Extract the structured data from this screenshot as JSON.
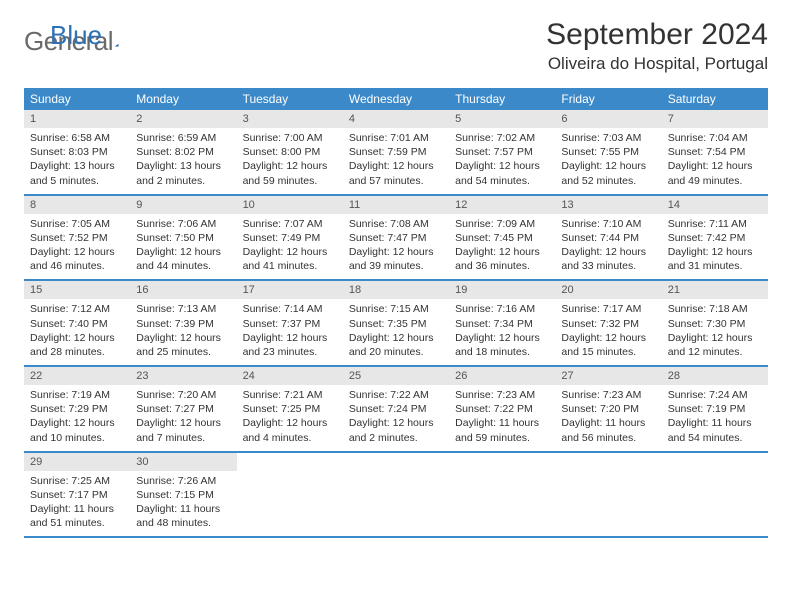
{
  "logo": {
    "text1": "General",
    "text2": "Blue"
  },
  "title": "September 2024",
  "location": "Oliveira do Hospital, Portugal",
  "weekdays": [
    "Sunday",
    "Monday",
    "Tuesday",
    "Wednesday",
    "Thursday",
    "Friday",
    "Saturday"
  ],
  "colors": {
    "header_bg": "#3b89c9",
    "header_text": "#ffffff",
    "daynum_bg": "#e7e7e7",
    "border": "#3b89c9",
    "logo_gray": "#6a6a6a",
    "logo_blue": "#2d72b5"
  },
  "days": [
    {
      "n": "1",
      "sr": "6:58 AM",
      "ss": "8:03 PM",
      "dl": "13 hours and 5 minutes."
    },
    {
      "n": "2",
      "sr": "6:59 AM",
      "ss": "8:02 PM",
      "dl": "13 hours and 2 minutes."
    },
    {
      "n": "3",
      "sr": "7:00 AM",
      "ss": "8:00 PM",
      "dl": "12 hours and 59 minutes."
    },
    {
      "n": "4",
      "sr": "7:01 AM",
      "ss": "7:59 PM",
      "dl": "12 hours and 57 minutes."
    },
    {
      "n": "5",
      "sr": "7:02 AM",
      "ss": "7:57 PM",
      "dl": "12 hours and 54 minutes."
    },
    {
      "n": "6",
      "sr": "7:03 AM",
      "ss": "7:55 PM",
      "dl": "12 hours and 52 minutes."
    },
    {
      "n": "7",
      "sr": "7:04 AM",
      "ss": "7:54 PM",
      "dl": "12 hours and 49 minutes."
    },
    {
      "n": "8",
      "sr": "7:05 AM",
      "ss": "7:52 PM",
      "dl": "12 hours and 46 minutes."
    },
    {
      "n": "9",
      "sr": "7:06 AM",
      "ss": "7:50 PM",
      "dl": "12 hours and 44 minutes."
    },
    {
      "n": "10",
      "sr": "7:07 AM",
      "ss": "7:49 PM",
      "dl": "12 hours and 41 minutes."
    },
    {
      "n": "11",
      "sr": "7:08 AM",
      "ss": "7:47 PM",
      "dl": "12 hours and 39 minutes."
    },
    {
      "n": "12",
      "sr": "7:09 AM",
      "ss": "7:45 PM",
      "dl": "12 hours and 36 minutes."
    },
    {
      "n": "13",
      "sr": "7:10 AM",
      "ss": "7:44 PM",
      "dl": "12 hours and 33 minutes."
    },
    {
      "n": "14",
      "sr": "7:11 AM",
      "ss": "7:42 PM",
      "dl": "12 hours and 31 minutes."
    },
    {
      "n": "15",
      "sr": "7:12 AM",
      "ss": "7:40 PM",
      "dl": "12 hours and 28 minutes."
    },
    {
      "n": "16",
      "sr": "7:13 AM",
      "ss": "7:39 PM",
      "dl": "12 hours and 25 minutes."
    },
    {
      "n": "17",
      "sr": "7:14 AM",
      "ss": "7:37 PM",
      "dl": "12 hours and 23 minutes."
    },
    {
      "n": "18",
      "sr": "7:15 AM",
      "ss": "7:35 PM",
      "dl": "12 hours and 20 minutes."
    },
    {
      "n": "19",
      "sr": "7:16 AM",
      "ss": "7:34 PM",
      "dl": "12 hours and 18 minutes."
    },
    {
      "n": "20",
      "sr": "7:17 AM",
      "ss": "7:32 PM",
      "dl": "12 hours and 15 minutes."
    },
    {
      "n": "21",
      "sr": "7:18 AM",
      "ss": "7:30 PM",
      "dl": "12 hours and 12 minutes."
    },
    {
      "n": "22",
      "sr": "7:19 AM",
      "ss": "7:29 PM",
      "dl": "12 hours and 10 minutes."
    },
    {
      "n": "23",
      "sr": "7:20 AM",
      "ss": "7:27 PM",
      "dl": "12 hours and 7 minutes."
    },
    {
      "n": "24",
      "sr": "7:21 AM",
      "ss": "7:25 PM",
      "dl": "12 hours and 4 minutes."
    },
    {
      "n": "25",
      "sr": "7:22 AM",
      "ss": "7:24 PM",
      "dl": "12 hours and 2 minutes."
    },
    {
      "n": "26",
      "sr": "7:23 AM",
      "ss": "7:22 PM",
      "dl": "11 hours and 59 minutes."
    },
    {
      "n": "27",
      "sr": "7:23 AM",
      "ss": "7:20 PM",
      "dl": "11 hours and 56 minutes."
    },
    {
      "n": "28",
      "sr": "7:24 AM",
      "ss": "7:19 PM",
      "dl": "11 hours and 54 minutes."
    },
    {
      "n": "29",
      "sr": "7:25 AM",
      "ss": "7:17 PM",
      "dl": "11 hours and 51 minutes."
    },
    {
      "n": "30",
      "sr": "7:26 AM",
      "ss": "7:15 PM",
      "dl": "11 hours and 48 minutes."
    }
  ]
}
